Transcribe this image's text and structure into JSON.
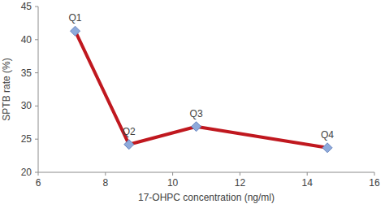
{
  "chart_data": {
    "type": "line",
    "x_label": "17-OHPC concentration (ng/ml)",
    "y_label": "SPTB rate (%)",
    "x": [
      7.1,
      8.7,
      10.7,
      14.6
    ],
    "labels": [
      "Q1",
      "Q2",
      "Q3",
      "Q4"
    ],
    "series": [
      {
        "color": "#c0181f",
        "marker": "diamond",
        "values": [
          41.3,
          24.2,
          26.9,
          23.7
        ]
      }
    ],
    "xlim": [
      6,
      16
    ],
    "xticks": [
      6,
      8,
      10,
      12,
      14,
      16
    ],
    "ylim": [
      20,
      45
    ],
    "yticks": [
      20,
      25,
      30,
      35,
      40,
      45
    ],
    "grid": false
  }
}
